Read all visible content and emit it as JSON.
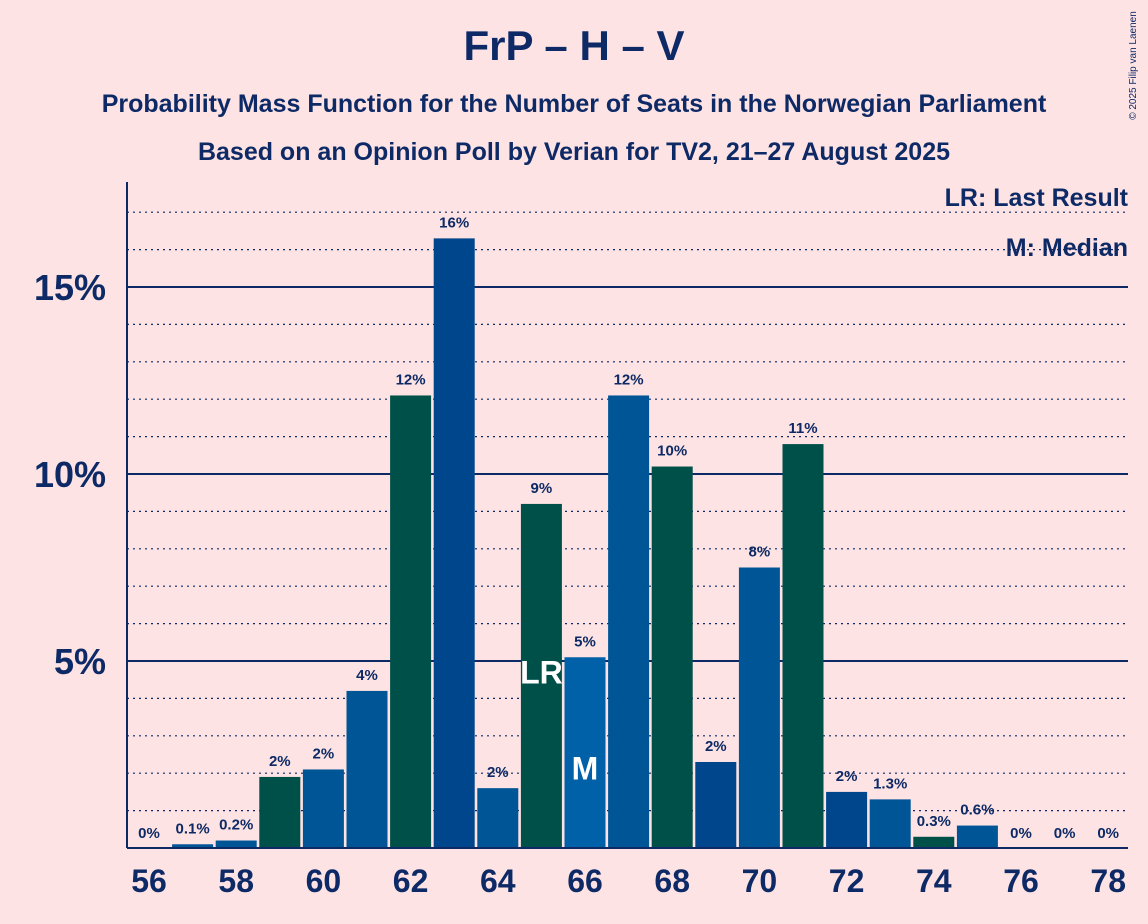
{
  "title": "FrP – H – V",
  "subtitle1": "Probability Mass Function for the Number of Seats in the Norwegian Parliament",
  "subtitle2": "Based on an Opinion Poll by Verian for TV2, 21–27 August 2025",
  "copyright": "© 2025 Filip van Laenen",
  "legend": {
    "last_result": "LR: Last Result",
    "median": "M: Median"
  },
  "colors": {
    "background": "#fde3e3",
    "text": "#0d2a66",
    "bar_blue_dark": "#00468c",
    "bar_blue": "#005596",
    "bar_green": "#00504a",
    "median_blue": "#0060a8"
  },
  "chart_data": {
    "type": "bar",
    "x": [
      56,
      57,
      58,
      59,
      60,
      61,
      62,
      63,
      64,
      65,
      66,
      67,
      68,
      69,
      70,
      71,
      72,
      73,
      74,
      75,
      76,
      77,
      78
    ],
    "values": [
      0,
      0.1,
      0.2,
      1.9,
      2.1,
      4.2,
      12.1,
      16.3,
      1.6,
      9.2,
      5.1,
      12.1,
      10.2,
      2.3,
      7.5,
      10.8,
      1.5,
      1.3,
      0.3,
      0.6,
      0,
      0,
      0
    ],
    "data_labels": [
      "0%",
      "0.1%",
      "0.2%",
      "2%",
      "2%",
      "4%",
      "12%",
      "16%",
      "2%",
      "9%",
      "5%",
      "12%",
      "10%",
      "2%",
      "8%",
      "11%",
      "2%",
      "1.3%",
      "0.3%",
      "0.6%",
      "0%",
      "0%",
      "0%"
    ],
    "bar_colors": [
      "blue",
      "blue",
      "blue",
      "green",
      "blue",
      "blue",
      "green",
      "blue_dark",
      "blue",
      "green",
      "blue",
      "blue",
      "green",
      "blue_dark",
      "blue",
      "green",
      "blue_dark",
      "blue",
      "green",
      "blue",
      "blue",
      "blue",
      "blue"
    ],
    "x_ticks": [
      "56",
      "58",
      "60",
      "62",
      "64",
      "66",
      "68",
      "70",
      "72",
      "74",
      "76",
      "78"
    ],
    "y_ticks": [
      {
        "value": 5,
        "label": "5%"
      },
      {
        "value": 10,
        "label": "10%"
      },
      {
        "value": 15,
        "label": "15%"
      }
    ],
    "ylim": [
      0,
      17
    ],
    "last_result": {
      "x": 65,
      "label": "LR"
    },
    "median": {
      "x": 66,
      "label": "M"
    }
  }
}
